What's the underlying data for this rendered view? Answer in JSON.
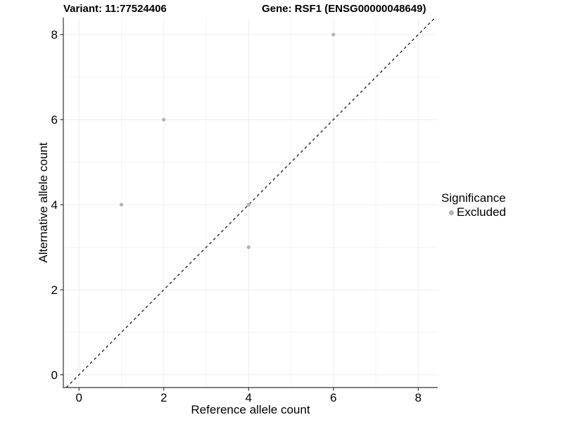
{
  "background_color": "#ffffff",
  "chart_data": {
    "type": "scatter",
    "title_left": "Variant: 11:77524406",
    "title_right": "Gene: RSF1 (ENSG00000048649)",
    "xlabel": "Reference allele count",
    "ylabel": "Alternative allele count",
    "xlim": [
      -0.37,
      8.46
    ],
    "ylim": [
      -0.3,
      8.4
    ],
    "xticks": [
      0,
      2,
      4,
      6,
      8
    ],
    "yticks": [
      0,
      2,
      4,
      6,
      8
    ],
    "xminor": [
      1,
      3,
      5,
      7
    ],
    "yminor": [
      1,
      3,
      5,
      7
    ],
    "grid": true,
    "legend": {
      "position": "right",
      "title": "Significance",
      "items": [
        {
          "label": "Excluded",
          "color": "#b3b3b3"
        }
      ]
    },
    "series": [
      {
        "name": "Excluded",
        "color": "#b3b3b3",
        "marker_radius": 2.6,
        "points": [
          [
            1,
            4
          ],
          [
            2,
            6
          ],
          [
            4,
            3
          ],
          [
            4,
            4
          ],
          [
            6,
            8
          ]
        ]
      }
    ],
    "reference_line": {
      "kind": "identity",
      "style": "dashed",
      "color": "#1a1a1a"
    },
    "style": {
      "axis_color": "#333333",
      "grid_major_color": "#ececec",
      "grid_minor_color": "#f4f4f4",
      "tick_label_size": 17
    }
  }
}
